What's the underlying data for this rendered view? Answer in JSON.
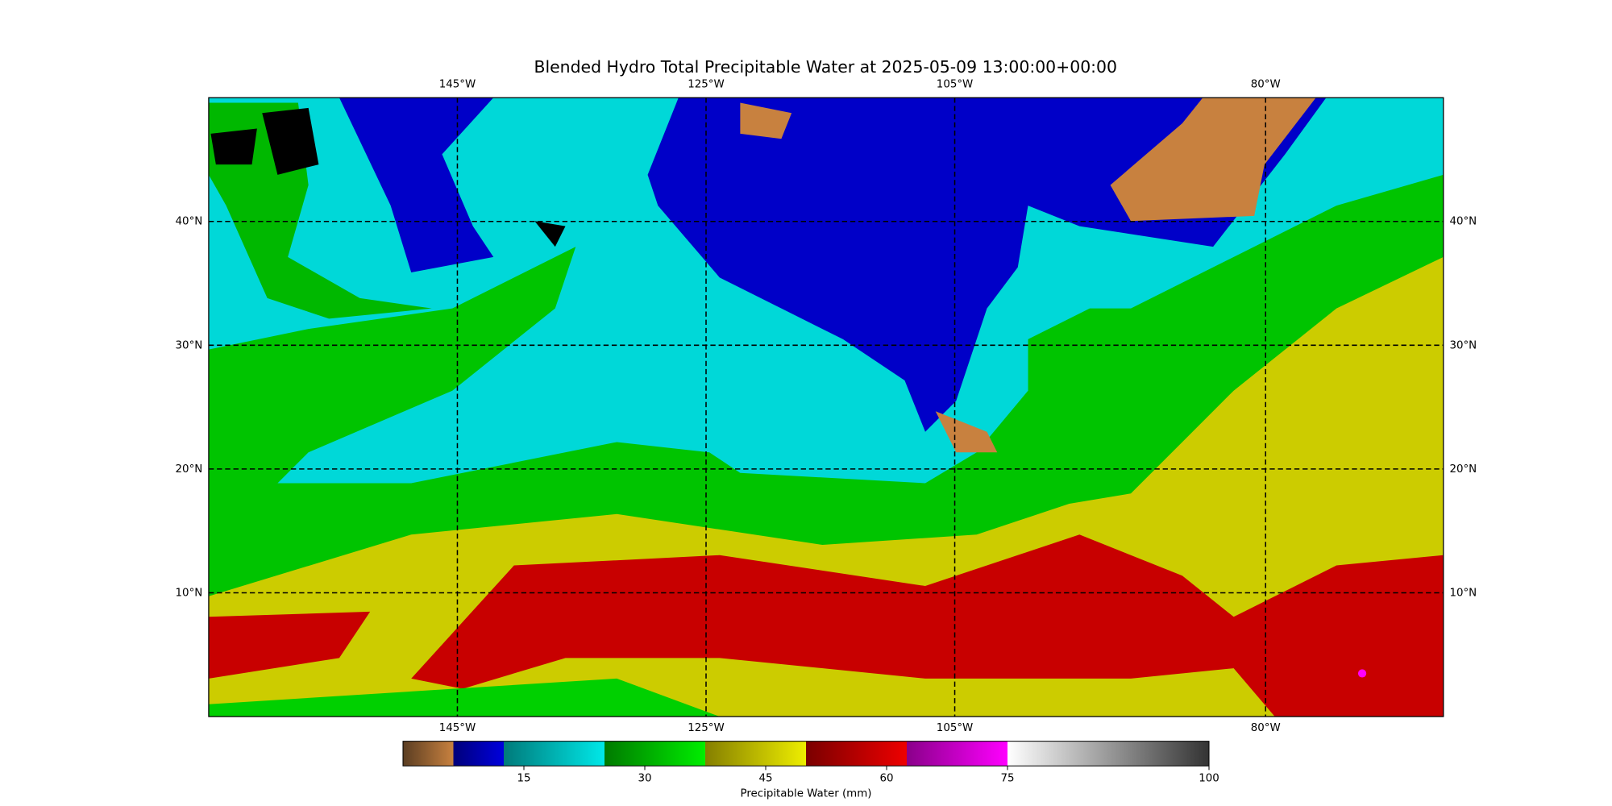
{
  "map": {
    "title": "Blended Hydro Total Precipitable Water at 2025-05-09 13:00:00+00:00",
    "lonlim": [
      -165,
      -65.7
    ],
    "latlim": [
      0,
      50
    ],
    "lon_ticks": [
      {
        "value": -145,
        "label": "145°W"
      },
      {
        "value": -125,
        "label": "125°W"
      },
      {
        "value": -105,
        "label": "105°W"
      },
      {
        "value": -80,
        "label": "80°W"
      }
    ],
    "lat_ticks": [
      {
        "value": 40,
        "label": "40°N"
      },
      {
        "value": 30,
        "label": "30°N"
      },
      {
        "value": 20,
        "label": "20°N"
      },
      {
        "value": 10,
        "label": "10°N"
      }
    ],
    "grid": true,
    "colorbar": {
      "label": "Precipitable Water (mm)",
      "lim": [
        0,
        100
      ],
      "ticks": [
        15,
        30,
        45,
        60,
        75,
        100
      ],
      "segments": [
        {
          "from": 0,
          "to": 6.25,
          "colors": [
            "#5a3d22",
            "#c8813f"
          ]
        },
        {
          "from": 6.25,
          "to": 12.5,
          "colors": [
            "#00007a",
            "#0000dd"
          ]
        },
        {
          "from": 12.5,
          "to": 25,
          "colors": [
            "#007a7a",
            "#00e8e8"
          ]
        },
        {
          "from": 25,
          "to": 37.5,
          "colors": [
            "#007a00",
            "#00ee00"
          ]
        },
        {
          "from": 37.5,
          "to": 50,
          "colors": [
            "#857f00",
            "#eeee00"
          ]
        },
        {
          "from": 50,
          "to": 62.5,
          "colors": [
            "#7a0000",
            "#ee0000"
          ]
        },
        {
          "from": 62.5,
          "to": 75,
          "colors": [
            "#8a008a",
            "#ff00ff"
          ]
        },
        {
          "from": 75,
          "to": 100,
          "colors": [
            "#ffffff",
            "#333333"
          ]
        }
      ]
    }
  }
}
